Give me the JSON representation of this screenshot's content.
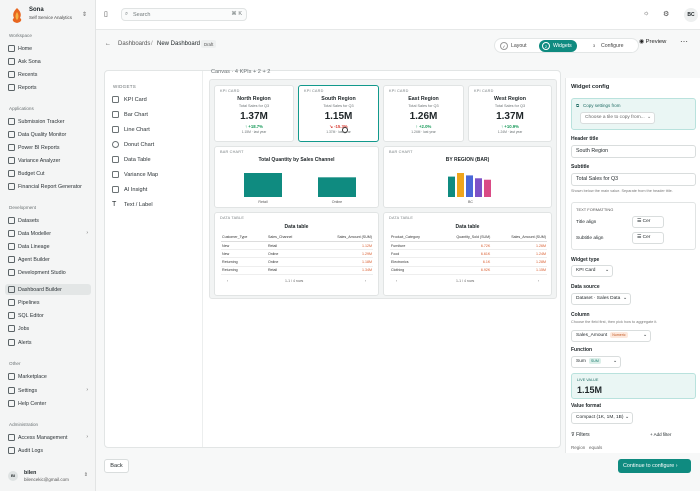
{
  "app": {
    "name": "Sona",
    "subtitle": "Self Service Analytics"
  },
  "sidebar": {
    "sections": [
      {
        "title": "Workspace",
        "items": [
          "Home",
          "Ask Sona",
          "Recents",
          "Reports"
        ]
      },
      {
        "title": "Applications",
        "items": [
          "Submission Tracker",
          "Data Quality Monitor",
          "Power BI Reports",
          "Variance Analyzer",
          "Budget Cut",
          "Financial Report Generator"
        ]
      },
      {
        "title": "Development",
        "items": [
          "Datasets",
          "Data Modeller",
          "Data Lineage",
          "Agent Builder",
          "Development Studio",
          "Dashboard Builder",
          "Pipelines",
          "SQL Editor",
          "Jobs",
          "Alerts"
        ]
      },
      {
        "title": "Other",
        "items": [
          "Marketplace",
          "Settings",
          "Help Center"
        ]
      },
      {
        "title": "Administration",
        "items": [
          "Access Management",
          "Audit Logs"
        ]
      }
    ],
    "user": {
      "name": "bilen",
      "email": "bilencekic@gmail.com",
      "initials": "BI"
    }
  },
  "topbar": {
    "search_placeholder": "Search",
    "shortcut": "⌘ K",
    "avatar": "BC"
  },
  "header": {
    "crumb_root": "Dashboards",
    "crumb_sep": "/",
    "crumb_current": "New Dashboard",
    "draft": "Draft",
    "steps": [
      {
        "num": "✓",
        "label": "Layout"
      },
      {
        "num": "2",
        "label": "Widgets"
      },
      {
        "num": "3",
        "label": "Configure"
      }
    ],
    "preview": "Preview"
  },
  "widgets": {
    "title": "WIDGETS",
    "items": [
      "KPI Card",
      "Bar Chart",
      "Line Chart",
      "Donut Chart",
      "Data Table",
      "Variance Map",
      "AI Insight",
      "Text / Label"
    ]
  },
  "canvas": {
    "label": "Canvas · 4 KPIs + 2 + 2"
  },
  "kpis": [
    {
      "type": "KPI CARD",
      "title": "North Region",
      "subtitle": "Total Sales for Q3",
      "value": "1.37M",
      "delta": "↑ +18.7%",
      "dir": "up",
      "last": "1.15M · last year"
    },
    {
      "type": "KPI CARD",
      "title": "South Region",
      "subtitle": "Total Sales for Q3",
      "value": "1.15M",
      "delta": "↘ -15.3%",
      "dir": "dn",
      "last": "1.37M · last year"
    },
    {
      "type": "KPI CARD",
      "title": "East Region",
      "subtitle": "Total Sales for Q3",
      "value": "1.26M",
      "delta": "↑ +2.0%",
      "dir": "up",
      "last": "1.24M · last year"
    },
    {
      "type": "KPI CARD",
      "title": "West Region",
      "subtitle": "Total Sales for Q3",
      "value": "1.37M",
      "delta": "↑ +10.9%",
      "dir": "up",
      "last": "1.24M · last year"
    }
  ],
  "bar1": {
    "type": "BAR CHART",
    "title": "Total Quantity by Sales Channel",
    "categories": [
      "Retail",
      "Online"
    ],
    "values": [
      1.0,
      0.82
    ]
  },
  "bar2": {
    "type": "BAR CHART",
    "title": "BY REGION (BAR)",
    "categories": [
      "BC"
    ],
    "series": [
      0.85,
      1.0,
      0.9,
      0.78,
      0.72
    ],
    "colors": [
      "#0f8b80",
      "#f0a51c",
      "#4a68d8",
      "#7d52c7",
      "#da4b86"
    ]
  },
  "table1": {
    "type": "DATA TABLE",
    "title": "Data table",
    "columns": [
      "Customer_Type",
      "Sales_Channel",
      "Sales_Amount (SUM)"
    ],
    "rows": [
      [
        "New",
        "Retail",
        "1.12M"
      ],
      [
        "New",
        "Online",
        "1.29M"
      ],
      [
        "Returning",
        "Online",
        "1.18M"
      ],
      [
        "Returning",
        "Retail",
        "1.34M"
      ]
    ],
    "pager": "1-1 / 4 rows"
  },
  "table2": {
    "type": "DATA TABLE",
    "title": "Data table",
    "columns": [
      "Product_Category",
      "Quantity_Sold (SUM)",
      "Sales_Amount (SUM)"
    ],
    "rows": [
      [
        "Furniture",
        "6.72K",
        "1.26M"
      ],
      [
        "Food",
        "6.61K",
        "1.24M"
      ],
      [
        "Electronics",
        "6.1K",
        "1.28M"
      ],
      [
        "Clothing",
        "6.92K",
        "1.15M"
      ]
    ],
    "pager": "1-1 / 4 rows"
  },
  "config": {
    "title": "Widget config",
    "copy_label": "Copy settings from",
    "copy_placeholder": "Choose a tile to copy from...",
    "header_title_label": "Header title",
    "header_title": "South Region",
    "subtitle_label": "Subtitle",
    "subtitle": "Total Sales for Q3",
    "subtitle_hint": "Shown below the main value. Separate from the header title.",
    "text_formatting": "TEXT FORMATTING",
    "title_align": "Title align",
    "subtitle_align": "Subtitle align",
    "align_value": "Cer",
    "widget_type_label": "Widget type",
    "widget_type": "KPI Card",
    "data_source_label": "Data source",
    "data_source": "Dataset · Sales Data",
    "column_label": "Column",
    "column_hint": "Choose the field first, then pick how to aggregate it.",
    "column": "Sales_Amount",
    "column_tag": "Numeric",
    "function_label": "Function",
    "function": "Sum",
    "function_tag": "SUM",
    "live_label": "LIVE VALUE",
    "live_value": "1.15M",
    "value_format_label": "Value format",
    "value_format": "Compact (1K, 1M, 1B)",
    "filters_label": "Filters",
    "add_filter": "+ Add filter",
    "filter_field": "Region",
    "filter_op": "equals"
  },
  "footer": {
    "back": "Back",
    "continue": "Continue to configure ›"
  }
}
